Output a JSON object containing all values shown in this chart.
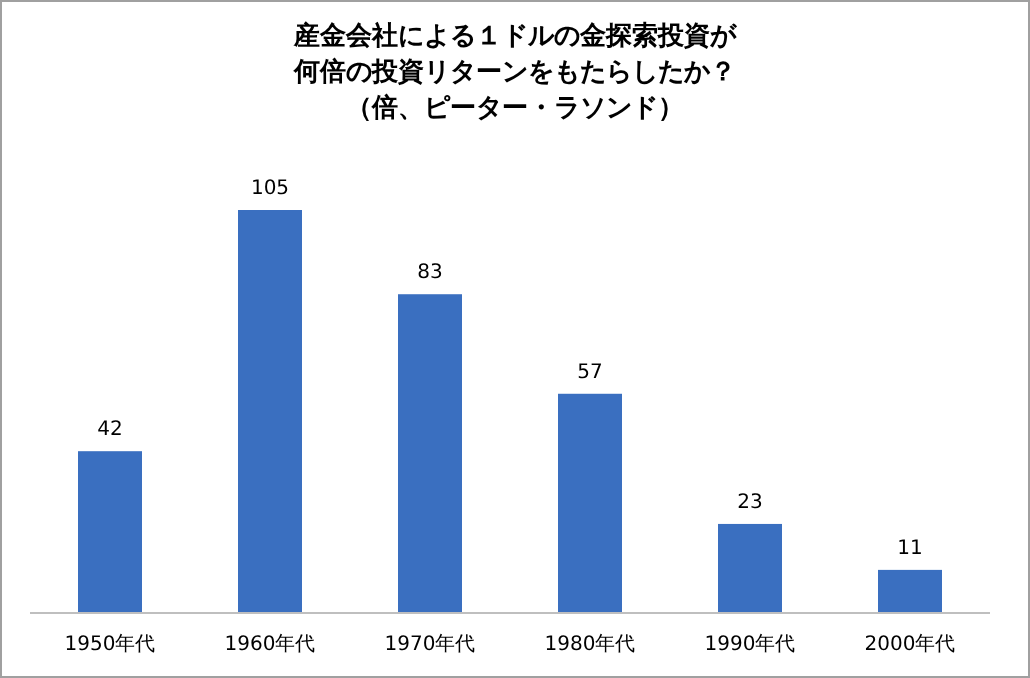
{
  "chart_data": {
    "type": "bar",
    "title": "産金会社による１ドルの金探索投資が何倍の投資リターンをもたらしたか？",
    "subtitle": "（倍、ピーター・ラソンド）",
    "categories": [
      "1950年代",
      "1960年代",
      "1970年代",
      "1980年代",
      "1990年代",
      "2000年代"
    ],
    "values": [
      42,
      105,
      83,
      57,
      23,
      11
    ],
    "color": "#3a6fc0",
    "data_labels": true
  }
}
